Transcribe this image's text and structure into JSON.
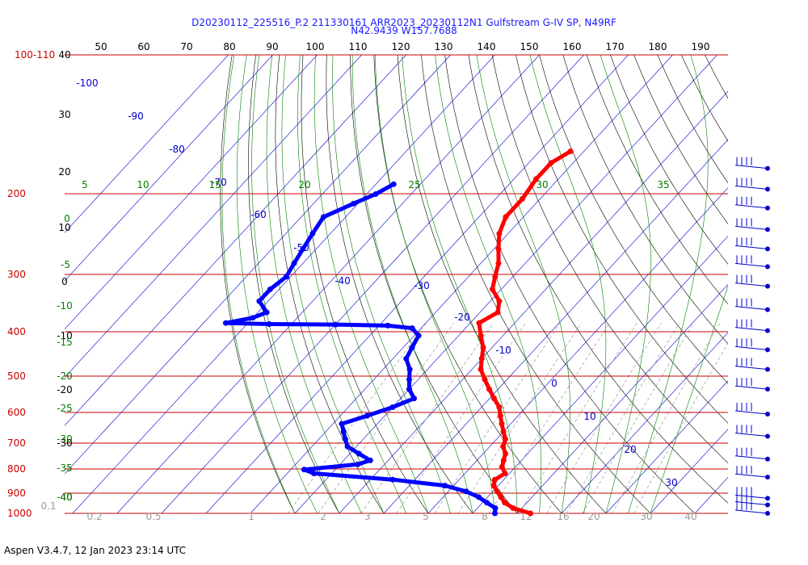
{
  "header": {
    "line1": "D20230112_225516_P.2 211330161 ARR2023_20230112N1 Gulfstream G-IV SP, N49RF",
    "line2": "N42.9439 W157.7688"
  },
  "footer": {
    "version": "Aspen V3.4.7, 12 Jan 2023  23:14 UTC"
  },
  "colors": {
    "isobar": "#cc0000",
    "temperature": "#ff0000",
    "dewpoint": "#0000ff",
    "isotherm": "#0000cc",
    "dry_adiabat": "#000000",
    "moist_adiabat": "#008000",
    "mixing_ratio": "#999999",
    "wind": "#0000cc"
  },
  "chart_data": {
    "type": "skew-t",
    "pressure_labels_hpa": [
      "100-110",
      "200",
      "300",
      "400",
      "500",
      "600",
      "700",
      "800",
      "900",
      "1000"
    ],
    "pressure_levels_hpa": [
      100,
      200,
      300,
      400,
      500,
      600,
      700,
      800,
      900,
      1000
    ],
    "top_temperature_labels": [
      "50",
      "60",
      "70",
      "80",
      "90",
      "100",
      "110",
      "120",
      "130",
      "140",
      "150",
      "160",
      "170",
      "180",
      "190"
    ],
    "left_dry_adiabat_labels": [
      "40",
      "30",
      "20",
      "10",
      "0",
      "-10",
      "-20",
      "-30",
      "-40"
    ],
    "isotherm_labels": [
      "-100",
      "-90",
      "-80",
      "-70",
      "-60",
      "-50",
      "-40",
      "-30",
      "-20",
      "-10",
      "0",
      "10",
      "20",
      "30"
    ],
    "moist_adiabat_labels": [
      "5",
      "10",
      "15",
      "20",
      "25",
      "30",
      "35",
      "0",
      "-5",
      "-10",
      "-15",
      "-20",
      "-25",
      "-30",
      "-35",
      "-40"
    ],
    "mixing_ratio_labels": [
      "0.1",
      "0.2",
      "0.5",
      "1",
      "2",
      "3",
      "5",
      "8",
      "12",
      "16",
      "20",
      "30",
      "40"
    ],
    "temperature_c": [
      {
        "p": 1000,
        "t": 13
      },
      {
        "p": 975,
        "t": 8
      },
      {
        "p": 950,
        "t": 5
      },
      {
        "p": 925,
        "t": 3
      },
      {
        "p": 900,
        "t": 1
      },
      {
        "p": 875,
        "t": -1
      },
      {
        "p": 850,
        "t": -2
      },
      {
        "p": 825,
        "t": -1
      },
      {
        "p": 800,
        "t": -3
      },
      {
        "p": 775,
        "t": -4
      },
      {
        "p": 750,
        "t": -5
      },
      {
        "p": 725,
        "t": -7
      },
      {
        "p": 700,
        "t": -8
      },
      {
        "p": 675,
        "t": -10
      },
      {
        "p": 650,
        "t": -12
      },
      {
        "p": 625,
        "t": -14
      },
      {
        "p": 600,
        "t": -16
      },
      {
        "p": 575,
        "t": -19
      },
      {
        "p": 550,
        "t": -22
      },
      {
        "p": 525,
        "t": -25
      },
      {
        "p": 500,
        "t": -28
      },
      {
        "p": 475,
        "t": -30
      },
      {
        "p": 450,
        "t": -32
      },
      {
        "p": 425,
        "t": -35
      },
      {
        "p": 400,
        "t": -38
      },
      {
        "p": 380,
        "t": -36
      },
      {
        "p": 360,
        "t": -38
      },
      {
        "p": 340,
        "t": -42
      },
      {
        "p": 320,
        "t": -44
      },
      {
        "p": 300,
        "t": -46
      },
      {
        "p": 280,
        "t": -49
      },
      {
        "p": 260,
        "t": -52
      },
      {
        "p": 240,
        "t": -54
      },
      {
        "p": 220,
        "t": -54
      },
      {
        "p": 200,
        "t": -55
      },
      {
        "p": 185,
        "t": -55
      },
      {
        "p": 175,
        "t": -53
      }
    ],
    "dewpoint_c": [
      {
        "p": 1000,
        "t": 5
      },
      {
        "p": 975,
        "t": 4
      },
      {
        "p": 950,
        "t": 1
      },
      {
        "p": 925,
        "t": -2
      },
      {
        "p": 900,
        "t": -6
      },
      {
        "p": 875,
        "t": -12
      },
      {
        "p": 850,
        "t": -25
      },
      {
        "p": 825,
        "t": -44
      },
      {
        "p": 810,
        "t": -47
      },
      {
        "p": 790,
        "t": -36
      },
      {
        "p": 775,
        "t": -34
      },
      {
        "p": 750,
        "t": -38
      },
      {
        "p": 725,
        "t": -42
      },
      {
        "p": 700,
        "t": -44
      },
      {
        "p": 675,
        "t": -46
      },
      {
        "p": 650,
        "t": -48
      },
      {
        "p": 625,
        "t": -44
      },
      {
        "p": 600,
        "t": -40
      },
      {
        "p": 575,
        "t": -37
      },
      {
        "p": 550,
        "t": -40
      },
      {
        "p": 525,
        "t": -42
      },
      {
        "p": 500,
        "t": -44
      },
      {
        "p": 475,
        "t": -47
      },
      {
        "p": 450,
        "t": -48
      },
      {
        "p": 425,
        "t": -49
      },
      {
        "p": 410,
        "t": -52
      },
      {
        "p": 405,
        "t": -58
      },
      {
        "p": 403,
        "t": -70
      },
      {
        "p": 402,
        "t": -85
      },
      {
        "p": 400,
        "t": -95
      },
      {
        "p": 390,
        "t": -90
      },
      {
        "p": 380,
        "t": -88
      },
      {
        "p": 360,
        "t": -92
      },
      {
        "p": 340,
        "t": -92
      },
      {
        "p": 320,
        "t": -91
      },
      {
        "p": 300,
        "t": -92
      },
      {
        "p": 280,
        "t": -93
      },
      {
        "p": 260,
        "t": -94
      },
      {
        "p": 240,
        "t": -95
      },
      {
        "p": 225,
        "t": -91
      },
      {
        "p": 215,
        "t": -88
      },
      {
        "p": 205,
        "t": -86
      }
    ],
    "wind_barbs": [
      {
        "p": 190
      },
      {
        "p": 210
      },
      {
        "p": 230
      },
      {
        "p": 255
      },
      {
        "p": 280
      },
      {
        "p": 305
      },
      {
        "p": 335
      },
      {
        "p": 375
      },
      {
        "p": 415
      },
      {
        "p": 455
      },
      {
        "p": 500
      },
      {
        "p": 550
      },
      {
        "p": 620
      },
      {
        "p": 690
      },
      {
        "p": 770
      },
      {
        "p": 840
      },
      {
        "p": 930
      },
      {
        "p": 960
      },
      {
        "p": 1000
      }
    ]
  }
}
